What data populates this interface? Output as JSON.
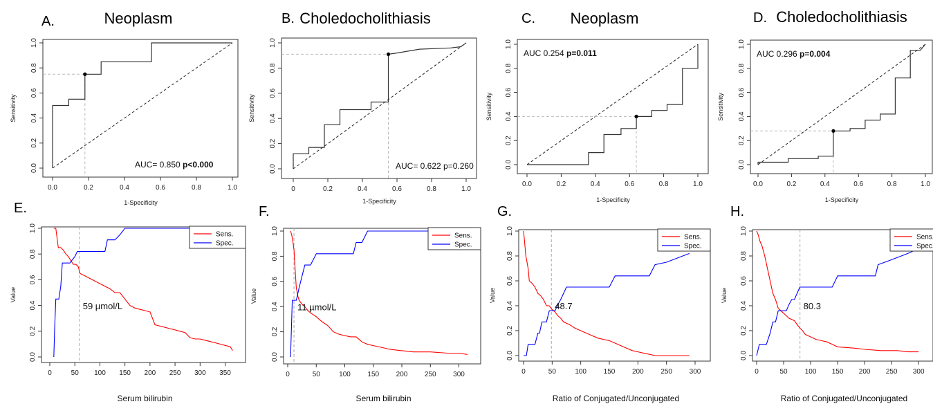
{
  "chart_data": [
    {
      "panel": "A",
      "type": "line",
      "title": "Neoplasm",
      "xlabel": "1-Specificity",
      "ylabel": "Sensitivity",
      "xlim": [
        0,
        1
      ],
      "ylim": [
        0,
        1
      ],
      "xticks": [
        "0.0",
        "0.2",
        "0.4",
        "0.6",
        "0.8",
        "1.0"
      ],
      "yticks": [
        "0.0",
        "0.2",
        "0.4",
        "0.6",
        "0.8",
        "1.0"
      ],
      "roc": [
        [
          0,
          0
        ],
        [
          0,
          0.5
        ],
        [
          0.09,
          0.5
        ],
        [
          0.09,
          0.55
        ],
        [
          0.18,
          0.55
        ],
        [
          0.18,
          0.75
        ],
        [
          0.27,
          0.75
        ],
        [
          0.27,
          0.85
        ],
        [
          0.55,
          0.85
        ],
        [
          0.55,
          1.0
        ],
        [
          1.0,
          1.0
        ]
      ],
      "cutoff_point": [
        0.18,
        0.75
      ],
      "auc_label": "AUC= 0.850",
      "p_label": "p<0.000",
      "p_bold": true,
      "annotation_pos": "bottom-right"
    },
    {
      "panel": "B",
      "type": "line",
      "title": "Choledocholithiasis",
      "xlabel": "1-Specificity",
      "ylabel": "Sensitivity",
      "xlim": [
        0,
        1
      ],
      "ylim": [
        0,
        1
      ],
      "xticks": [
        "0",
        "0.2",
        "0.4",
        "0.6",
        "0.8",
        "1.0"
      ],
      "yticks": [
        "0.0",
        "0.2",
        "0.4",
        "0.6",
        "0.8",
        "1.0"
      ],
      "roc": [
        [
          0,
          0
        ],
        [
          0,
          0.12
        ],
        [
          0.09,
          0.12
        ],
        [
          0.09,
          0.17
        ],
        [
          0.18,
          0.17
        ],
        [
          0.18,
          0.35
        ],
        [
          0.27,
          0.35
        ],
        [
          0.27,
          0.47
        ],
        [
          0.45,
          0.47
        ],
        [
          0.45,
          0.53
        ],
        [
          0.55,
          0.53
        ],
        [
          0.55,
          0.91
        ],
        [
          0.6,
          0.92
        ],
        [
          0.73,
          0.95
        ],
        [
          0.91,
          0.96
        ],
        [
          0.97,
          0.97
        ],
        [
          0.99,
          0.99
        ],
        [
          1.0,
          1.0
        ]
      ],
      "cutoff_point": [
        0.55,
        0.91
      ],
      "auc_label": "AUC= 0.622 p=0.260",
      "p_label": "",
      "p_bold": false,
      "annotation_pos": "bottom-right"
    },
    {
      "panel": "C",
      "type": "line",
      "title": "Neoplasm",
      "xlabel": "1-Specificity",
      "ylabel": "Sensitivity",
      "xlim": [
        0,
        1
      ],
      "ylim": [
        0,
        1
      ],
      "xticks": [
        "0.0",
        "0.2",
        "0.4",
        "0.6",
        "0.8",
        "1.0"
      ],
      "yticks": [
        "0.0",
        "0.2",
        "0.4",
        "0.6",
        "0.8",
        "1.0"
      ],
      "roc": [
        [
          0,
          0
        ],
        [
          0.36,
          0
        ],
        [
          0.36,
          0.1
        ],
        [
          0.45,
          0.1
        ],
        [
          0.45,
          0.25
        ],
        [
          0.55,
          0.25
        ],
        [
          0.55,
          0.3
        ],
        [
          0.64,
          0.3
        ],
        [
          0.64,
          0.4
        ],
        [
          0.73,
          0.4
        ],
        [
          0.73,
          0.45
        ],
        [
          0.82,
          0.45
        ],
        [
          0.82,
          0.5
        ],
        [
          0.91,
          0.5
        ],
        [
          0.91,
          0.8
        ],
        [
          1.0,
          0.8
        ],
        [
          1.0,
          1.0
        ]
      ],
      "cutoff_point": [
        0.64,
        0.4
      ],
      "auc_label": "AUC 0.254",
      "p_label": "p=0.011",
      "p_bold": true,
      "annotation_pos": "top-left"
    },
    {
      "panel": "D",
      "type": "line",
      "title": "Choledocholithiasis",
      "xlabel": "1-Specificity",
      "ylabel": "Sensitivity",
      "xlim": [
        0,
        1
      ],
      "ylim": [
        0,
        1
      ],
      "xticks": [
        "0.0",
        "0.2",
        "0.4",
        "0.6",
        "0.8",
        "1.0"
      ],
      "yticks": [
        "0.0",
        "0.2",
        "0.4",
        "0.6",
        "0.8",
        "1.0"
      ],
      "roc": [
        [
          0,
          0
        ],
        [
          0,
          0.02
        ],
        [
          0.18,
          0.02
        ],
        [
          0.18,
          0.05
        ],
        [
          0.36,
          0.05
        ],
        [
          0.36,
          0.07
        ],
        [
          0.45,
          0.07
        ],
        [
          0.45,
          0.28
        ],
        [
          0.55,
          0.28
        ],
        [
          0.55,
          0.3
        ],
        [
          0.64,
          0.3
        ],
        [
          0.64,
          0.37
        ],
        [
          0.73,
          0.37
        ],
        [
          0.73,
          0.42
        ],
        [
          0.82,
          0.42
        ],
        [
          0.82,
          0.72
        ],
        [
          0.91,
          0.72
        ],
        [
          0.91,
          0.95
        ],
        [
          0.97,
          0.95
        ],
        [
          1.0,
          1.0
        ]
      ],
      "cutoff_point": [
        0.45,
        0.28
      ],
      "auc_label": "AUC 0.296",
      "p_label": "p=0.004",
      "p_bold": true,
      "annotation_pos": "top-left"
    },
    {
      "panel": "E",
      "type": "line",
      "xlabel": "Serum bilirubin",
      "ylabel": "Value",
      "xlim": [
        0,
        370
      ],
      "ylim": [
        0,
        1
      ],
      "xticks": [
        "0",
        "50",
        "100",
        "150",
        "200",
        "250",
        "300",
        "350"
      ],
      "yticks": [
        "0.0",
        "0.2",
        "0.4",
        "0.6",
        "0.8",
        "1.0"
      ],
      "series": [
        {
          "name": "Sens.",
          "color": "#ff0000",
          "x": [
            8,
            12,
            17,
            22,
            27,
            32,
            37,
            42,
            47,
            52,
            57,
            60,
            70,
            80,
            90,
            100,
            110,
            120,
            130,
            140,
            150,
            160,
            170,
            180,
            190,
            200,
            210,
            220,
            230,
            240,
            250,
            260,
            270,
            280,
            290,
            300,
            310,
            320,
            330,
            340,
            350,
            360,
            365
          ],
          "y": [
            1.0,
            1.0,
            0.85,
            0.85,
            0.83,
            0.8,
            0.78,
            0.75,
            0.72,
            0.72,
            0.7,
            0.65,
            0.63,
            0.61,
            0.59,
            0.57,
            0.55,
            0.53,
            0.5,
            0.5,
            0.45,
            0.4,
            0.38,
            0.37,
            0.36,
            0.35,
            0.25,
            0.24,
            0.23,
            0.22,
            0.21,
            0.2,
            0.19,
            0.15,
            0.14,
            0.14,
            0.13,
            0.12,
            0.11,
            0.1,
            0.09,
            0.08,
            0.05
          ]
        },
        {
          "name": "Spec.",
          "color": "#0000ff",
          "x": [
            8,
            10,
            12,
            15,
            18,
            22,
            25,
            28,
            32,
            40,
            50,
            55,
            60,
            70,
            80,
            90,
            100,
            110,
            115,
            120,
            130,
            140,
            150,
            200,
            250,
            300,
            360
          ],
          "y": [
            0.0,
            0.25,
            0.45,
            0.45,
            0.45,
            0.55,
            0.73,
            0.73,
            0.73,
            0.73,
            0.78,
            0.82,
            0.82,
            0.82,
            0.82,
            0.82,
            0.82,
            0.82,
            0.91,
            0.91,
            0.91,
            0.95,
            1.0,
            1.0,
            1.0,
            1.0,
            1.0
          ]
        }
      ],
      "cutoff": 59,
      "cutoff_label": "59 µmol/L",
      "legend": "top-right"
    },
    {
      "panel": "F",
      "type": "line",
      "xlabel": "Serum bilirubin",
      "ylabel": "Value",
      "xlim": [
        0,
        320
      ],
      "ylim": [
        0,
        1
      ],
      "xticks": [
        "0",
        "50",
        "100",
        "150",
        "200",
        "250",
        "300"
      ],
      "yticks": [
        "0.0",
        "0.2",
        "0.4",
        "0.6",
        "0.8",
        "1.0"
      ],
      "series": [
        {
          "name": "Sens.",
          "color": "#ff0000",
          "x": [
            5,
            7,
            9,
            11,
            13,
            15,
            18,
            20,
            25,
            30,
            35,
            40,
            50,
            60,
            70,
            80,
            90,
            100,
            110,
            120,
            130,
            140,
            150,
            160,
            180,
            200,
            220,
            250,
            280,
            300,
            315
          ],
          "y": [
            1.0,
            0.97,
            0.92,
            0.85,
            0.7,
            0.55,
            0.48,
            0.45,
            0.42,
            0.4,
            0.37,
            0.35,
            0.32,
            0.28,
            0.25,
            0.2,
            0.18,
            0.17,
            0.16,
            0.16,
            0.12,
            0.1,
            0.09,
            0.08,
            0.06,
            0.05,
            0.04,
            0.04,
            0.03,
            0.03,
            0.02
          ]
        },
        {
          "name": "Spec.",
          "color": "#0000ff",
          "x": [
            5,
            8,
            10,
            12,
            15,
            20,
            25,
            30,
            40,
            50,
            60,
            70,
            80,
            90,
            100,
            115,
            120,
            130,
            140,
            150,
            200,
            250,
            300,
            315
          ],
          "y": [
            0.0,
            0.45,
            0.45,
            0.45,
            0.45,
            0.55,
            0.64,
            0.73,
            0.73,
            0.82,
            0.82,
            0.82,
            0.82,
            0.82,
            0.82,
            0.82,
            0.91,
            0.91,
            1.0,
            1.0,
            1.0,
            1.0,
            1.0,
            1.0
          ]
        }
      ],
      "cutoff": 11,
      "cutoff_label": "11 µmol/L",
      "legend": "top-right"
    },
    {
      "panel": "G",
      "type": "line",
      "xlabel": "Ratio of Conjugated/Unconjugated",
      "ylabel": "Value",
      "xlim": [
        0,
        300
      ],
      "ylim": [
        0,
        1
      ],
      "xticks": [
        "0",
        "50",
        "100",
        "150",
        "200",
        "250",
        "300"
      ],
      "yticks": [
        "0.0",
        "0.2",
        "0.4",
        "0.6",
        "0.8",
        "1.0"
      ],
      "series": [
        {
          "name": "Sens.",
          "color": "#ff0000",
          "x": [
            0,
            2,
            4,
            6,
            8,
            10,
            15,
            20,
            25,
            30,
            35,
            40,
            45,
            50,
            55,
            60,
            65,
            70,
            75,
            80,
            90,
            100,
            110,
            120,
            130,
            140,
            150,
            160,
            170,
            180,
            190,
            200,
            210,
            220,
            230,
            250,
            270,
            290
          ],
          "y": [
            1.0,
            0.9,
            0.8,
            0.75,
            0.7,
            0.6,
            0.58,
            0.55,
            0.5,
            0.48,
            0.45,
            0.4,
            0.4,
            0.37,
            0.35,
            0.32,
            0.3,
            0.27,
            0.26,
            0.25,
            0.22,
            0.2,
            0.18,
            0.16,
            0.14,
            0.13,
            0.12,
            0.1,
            0.08,
            0.06,
            0.04,
            0.03,
            0.02,
            0.01,
            0.0,
            0.0,
            0.0,
            0.0
          ]
        },
        {
          "name": "Spec.",
          "color": "#0000ff",
          "x": [
            0,
            5,
            8,
            15,
            20,
            25,
            28,
            32,
            40,
            45,
            50,
            55,
            60,
            65,
            70,
            75,
            80,
            100,
            120,
            140,
            150,
            160,
            180,
            200,
            220,
            230,
            250,
            290
          ],
          "y": [
            0.0,
            0.0,
            0.09,
            0.09,
            0.09,
            0.18,
            0.18,
            0.27,
            0.27,
            0.36,
            0.36,
            0.36,
            0.41,
            0.45,
            0.5,
            0.55,
            0.55,
            0.55,
            0.55,
            0.55,
            0.55,
            0.64,
            0.64,
            0.64,
            0.64,
            0.73,
            0.75,
            0.82
          ]
        }
      ],
      "cutoff": 48.7,
      "cutoff_label": "48.7",
      "legend": "top-right"
    },
    {
      "panel": "H",
      "type": "line",
      "xlabel": "Ratio of Conjugated/Unconjugated",
      "ylabel": "Value",
      "xlim": [
        0,
        310
      ],
      "ylim": [
        0,
        1
      ],
      "xticks": [
        "0",
        "50",
        "100",
        "150",
        "200",
        "250",
        "300"
      ],
      "yticks": [
        "0.0",
        "0.2",
        "0.4",
        "0.6",
        "0.8",
        "1.0"
      ],
      "series": [
        {
          "name": "Sens.",
          "color": "#ff0000",
          "x": [
            0,
            3,
            6,
            10,
            15,
            20,
            25,
            30,
            35,
            40,
            45,
            50,
            55,
            60,
            65,
            70,
            75,
            80,
            85,
            90,
            100,
            110,
            120,
            130,
            140,
            150,
            180,
            200,
            230,
            260,
            280,
            300
          ],
          "y": [
            1.0,
            0.97,
            0.92,
            0.88,
            0.8,
            0.7,
            0.6,
            0.5,
            0.45,
            0.38,
            0.36,
            0.34,
            0.32,
            0.3,
            0.29,
            0.28,
            0.25,
            0.22,
            0.2,
            0.17,
            0.15,
            0.13,
            0.12,
            0.11,
            0.09,
            0.07,
            0.06,
            0.05,
            0.04,
            0.04,
            0.03,
            0.03
          ]
        },
        {
          "name": "Spec.",
          "color": "#0000ff",
          "x": [
            0,
            5,
            10,
            18,
            25,
            30,
            35,
            40,
            45,
            50,
            55,
            60,
            65,
            70,
            75,
            80,
            100,
            120,
            140,
            150,
            180,
            200,
            220,
            225,
            250,
            280,
            300
          ],
          "y": [
            0.0,
            0.09,
            0.09,
            0.09,
            0.18,
            0.27,
            0.27,
            0.36,
            0.36,
            0.36,
            0.36,
            0.41,
            0.45,
            0.45,
            0.5,
            0.55,
            0.55,
            0.55,
            0.55,
            0.64,
            0.64,
            0.64,
            0.64,
            0.73,
            0.77,
            0.82,
            0.86
          ]
        }
      ],
      "cutoff": 80.3,
      "cutoff_label": "80.3",
      "legend": "top-right"
    }
  ]
}
